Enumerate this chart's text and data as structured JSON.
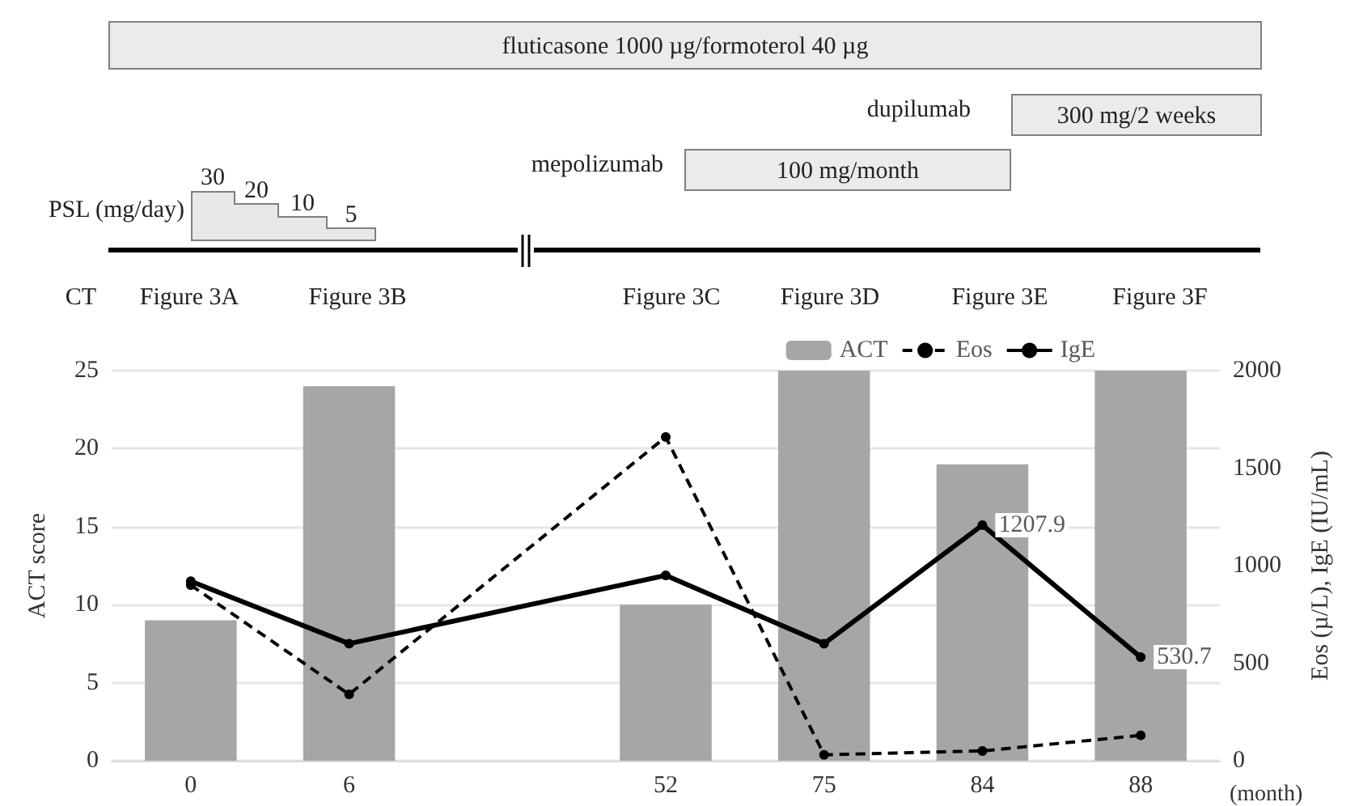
{
  "chart_data": {
    "type": "bar",
    "categories": [
      "0",
      "6",
      null,
      "52",
      "75",
      "84",
      "88"
    ],
    "xlabel": "(month)",
    "ylabel": "ACT score",
    "y2label": "Eos (µ/L), IgE (IU/mL)",
    "series": [
      {
        "name": "ACT",
        "color": "#a6a6a6",
        "values": [
          9,
          24,
          null,
          10,
          25,
          19,
          25
        ]
      },
      {
        "name": "Eos",
        "type": "line",
        "axis": "y2",
        "color": "#000000",
        "line_style": "dashed",
        "marker": "circle",
        "values": [
          900,
          340,
          null,
          1660,
          30,
          50,
          130
        ]
      },
      {
        "name": "IgE",
        "type": "line",
        "axis": "y2",
        "color": "#000000",
        "line_style": "solid",
        "marker": "circle",
        "values": [
          920,
          600,
          null,
          950,
          600,
          1207.9,
          530.7
        ],
        "value_labels": [
          null,
          null,
          null,
          null,
          null,
          "1207.9",
          "530.7"
        ]
      }
    ],
    "ylim": [
      0,
      25
    ],
    "yticks": [
      0,
      5,
      10,
      15,
      20,
      25
    ],
    "y2lim": [
      0,
      2000
    ],
    "y2ticks": [
      0,
      500,
      1000,
      1500,
      2000
    ],
    "grid": "y",
    "legend": "top right",
    "annotations": [
      "fluticasone 1000 µg/formoterol 40 µg",
      "dupilumab",
      "300 mg/2 weeks",
      "mepolizumab",
      "100 mg/month",
      "PSL (mg/day)",
      "30",
      "20",
      "10",
      "5",
      "CT",
      "Figure 3A",
      "Figure 3B",
      "Figure 3C",
      "Figure 3D",
      "Figure 3E",
      "Figure 3F"
    ]
  }
}
